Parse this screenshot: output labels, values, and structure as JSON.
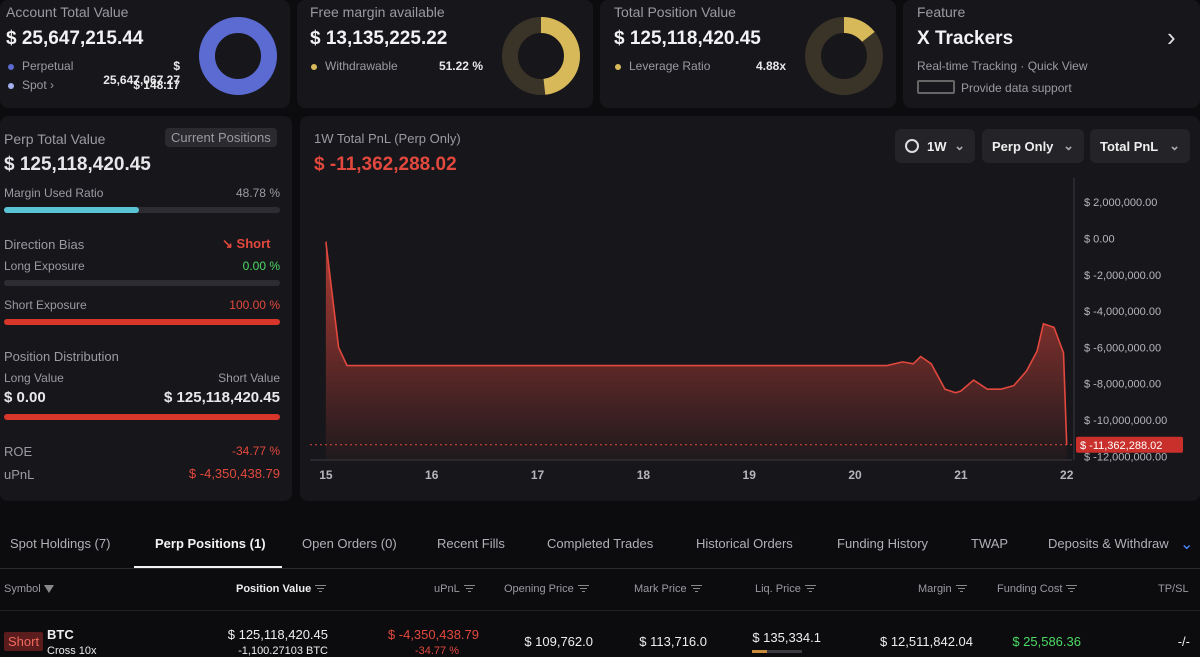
{
  "cards": {
    "account": {
      "title": "Account Total Value",
      "value": "$ 25,647,215.44",
      "perp_label": "Perpetual",
      "perp_value": "$ 25,647,067.27",
      "spot_label": "Spot",
      "spot_value": "$ 148.17",
      "perp_color": "#5b6bd1",
      "spot_color": "#a6b0f0"
    },
    "margin": {
      "title": "Free margin available",
      "value": "$ 13,135,225.22",
      "withdraw_label": "Withdrawable",
      "withdraw_value": "51.22 %",
      "withdraw_fraction": 0.5122,
      "color": "#d8b95a"
    },
    "position": {
      "title": "Total Position Value",
      "value": "$ 125,118,420.45",
      "lev_label": "Leverage Ratio",
      "lev_value": "4.88x",
      "color": "#d8b95a"
    },
    "feature": {
      "title": "Feature",
      "name": "X Trackers",
      "desc": "Real-time Tracking · Quick View",
      "support": "Provide data support"
    }
  },
  "left": {
    "perp_total_label": "Perp Total Value",
    "current_positions": "Current Positions",
    "perp_total_value": "$ 125,118,420.45",
    "margin_used_label": "Margin Used Ratio",
    "margin_used_value": "48.78 %",
    "margin_used_fraction": 0.4878,
    "direction_label": "Direction Bias",
    "direction_value": "Short",
    "long_label": "Long Exposure",
    "long_value": "0.00 %",
    "long_fraction": 0,
    "short_label": "Short Exposure",
    "short_value": "100.00 %",
    "short_fraction": 1,
    "dist_label": "Position Distribution",
    "long_value_label": "Long Value",
    "short_value_label": "Short Value",
    "long_amount": "$ 0.00",
    "short_amount": "$ 125,118,420.45",
    "roe_label": "ROE",
    "roe_value": "-34.77 %",
    "upnl_label": "uPnL",
    "upnl_value": "$ -4,350,438.79"
  },
  "chart_header": {
    "title": "1W Total PnL (Perp Only)",
    "value": "$ -11,362,288.02",
    "range": "1W",
    "filter1": "Perp Only",
    "filter2": "Total PnL"
  },
  "chart_data": {
    "type": "area",
    "x": [
      15,
      15.12,
      15.2,
      15.5,
      16,
      16.5,
      17,
      17.5,
      18,
      18.5,
      19,
      19.5,
      20,
      20.3,
      20.45,
      20.55,
      20.62,
      20.72,
      20.85,
      20.95,
      21,
      21.12,
      21.25,
      21.38,
      21.5,
      21.62,
      21.72,
      21.78,
      21.88,
      21.97,
      22
    ],
    "y": [
      -200000,
      -6000000,
      -7000000,
      -7000000,
      -7000000,
      -7000000,
      -7000000,
      -7000000,
      -7000000,
      -7000000,
      -7000000,
      -7000000,
      -7000000,
      -7000000,
      -6800000,
      -6900000,
      -6500000,
      -6900000,
      -8300000,
      -8500000,
      -8400000,
      -7800000,
      -8300000,
      -8300000,
      -8100000,
      -7300000,
      -6200000,
      -4700000,
      -4900000,
      -6300000,
      -11362288.02
    ],
    "xticks": [
      "15",
      "16",
      "17",
      "18",
      "19",
      "20",
      "21",
      "22"
    ],
    "yticks": [
      "$ 2,000,000.00",
      "$ 0.00",
      "$ -2,000,000.00",
      "$ -4,000,000.00",
      "$ -6,000,000.00",
      "$ -8,000,000.00",
      "$ -10,000,000.00",
      "$ -12,000,000.00"
    ],
    "ytick_values": [
      2000000,
      0,
      -2000000,
      -4000000,
      -6000000,
      -8000000,
      -10000000,
      -12000000
    ],
    "xlim": [
      14.85,
      22.05
    ],
    "ylim": [
      -12200000,
      3000000
    ],
    "last_label": "$ -11,362,288.02",
    "color": "#e2483d"
  },
  "tabs": [
    "Spot Holdings (7)",
    "Perp Positions (1)",
    "Open Orders (0)",
    "Recent Fills",
    "Completed Trades",
    "Historical Orders",
    "Funding History",
    "TWAP",
    "Deposits & Withdraw"
  ],
  "table": {
    "headers": {
      "symbol": "Symbol",
      "position_value": "Position Value",
      "upnl": "uPnL",
      "opening": "Opening Price",
      "mark": "Mark Price",
      "liq": "Liq. Price",
      "margin": "Margin",
      "funding": "Funding Cost",
      "tpsl": "TP/SL"
    },
    "row": {
      "side": "Short",
      "symbol": "BTC",
      "mode": "Cross 10x",
      "position_value": "$ 125,118,420.45",
      "size": "-1,100.27103 BTC",
      "upnl": "$ -4,350,438.79",
      "upnl_pct": "-34.77 %",
      "opening": "$ 109,762.0",
      "mark": "$ 113,716.0",
      "liq": "$ 135,334.1",
      "margin": "$ 12,511,842.04",
      "funding": "$ 25,586.36",
      "tpsl": "-/-"
    }
  }
}
